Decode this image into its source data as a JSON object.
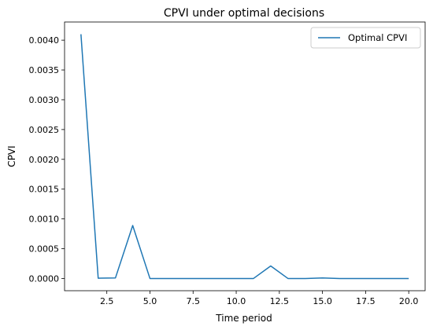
{
  "chart_data": {
    "type": "line",
    "title": "CPVI under optimal decisions",
    "xlabel": "Time period",
    "ylabel": "CPVI",
    "xlim": [
      0.05,
      20.95
    ],
    "ylim": [
      -0.000205,
      0.004305
    ],
    "xticks": [
      2.5,
      5.0,
      7.5,
      10.0,
      12.5,
      15.0,
      17.5,
      20.0
    ],
    "xtick_labels": [
      "2.5",
      "5.0",
      "7.5",
      "10.0",
      "12.5",
      "15.0",
      "17.5",
      "20.0"
    ],
    "yticks": [
      0.0,
      0.0005,
      0.001,
      0.0015,
      0.002,
      0.0025,
      0.003,
      0.0035,
      0.004
    ],
    "ytick_labels": [
      "0.0000",
      "0.0005",
      "0.0010",
      "0.0015",
      "0.0020",
      "0.0025",
      "0.0030",
      "0.0035",
      "0.0040"
    ],
    "grid": false,
    "legend_position": "top-right",
    "series": [
      {
        "name": "Optimal CPVI",
        "color": "#1f77b4",
        "x": [
          1,
          2,
          3,
          4,
          5,
          6,
          7,
          8,
          9,
          10,
          11,
          12,
          13,
          14,
          15,
          16,
          17,
          18,
          19,
          20
        ],
        "y": [
          0.0041,
          5e-06,
          1e-05,
          0.00089,
          0.0,
          0.0,
          0.0,
          0.0,
          0.0,
          0.0,
          0.0,
          0.00021,
          0.0,
          0.0,
          1e-05,
          0.0,
          0.0,
          0.0,
          0.0,
          0.0
        ]
      }
    ]
  }
}
